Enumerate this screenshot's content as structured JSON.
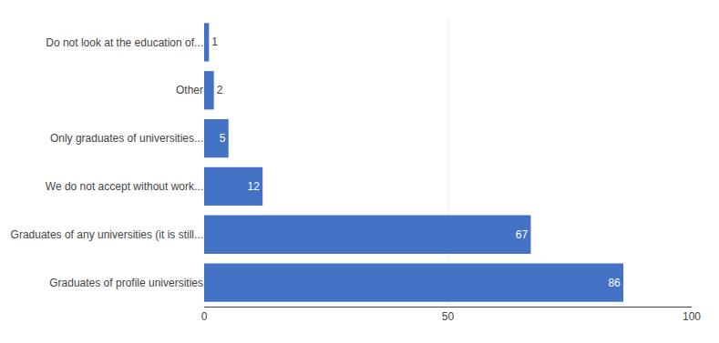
{
  "chart_data": {
    "type": "bar",
    "orientation": "horizontal",
    "categories": [
      "Graduates of profile universities",
      "Graduates of any universities (it is still...",
      "We do not accept without work...",
      "Only graduates of universities...",
      "Other",
      "Do not look at the education of..."
    ],
    "values": [
      86,
      67,
      12,
      5,
      2,
      1
    ],
    "color": "#4472C4",
    "xlim": [
      0,
      100
    ],
    "xticks": [
      0,
      50,
      100
    ],
    "grid": true,
    "data_labels": true
  }
}
